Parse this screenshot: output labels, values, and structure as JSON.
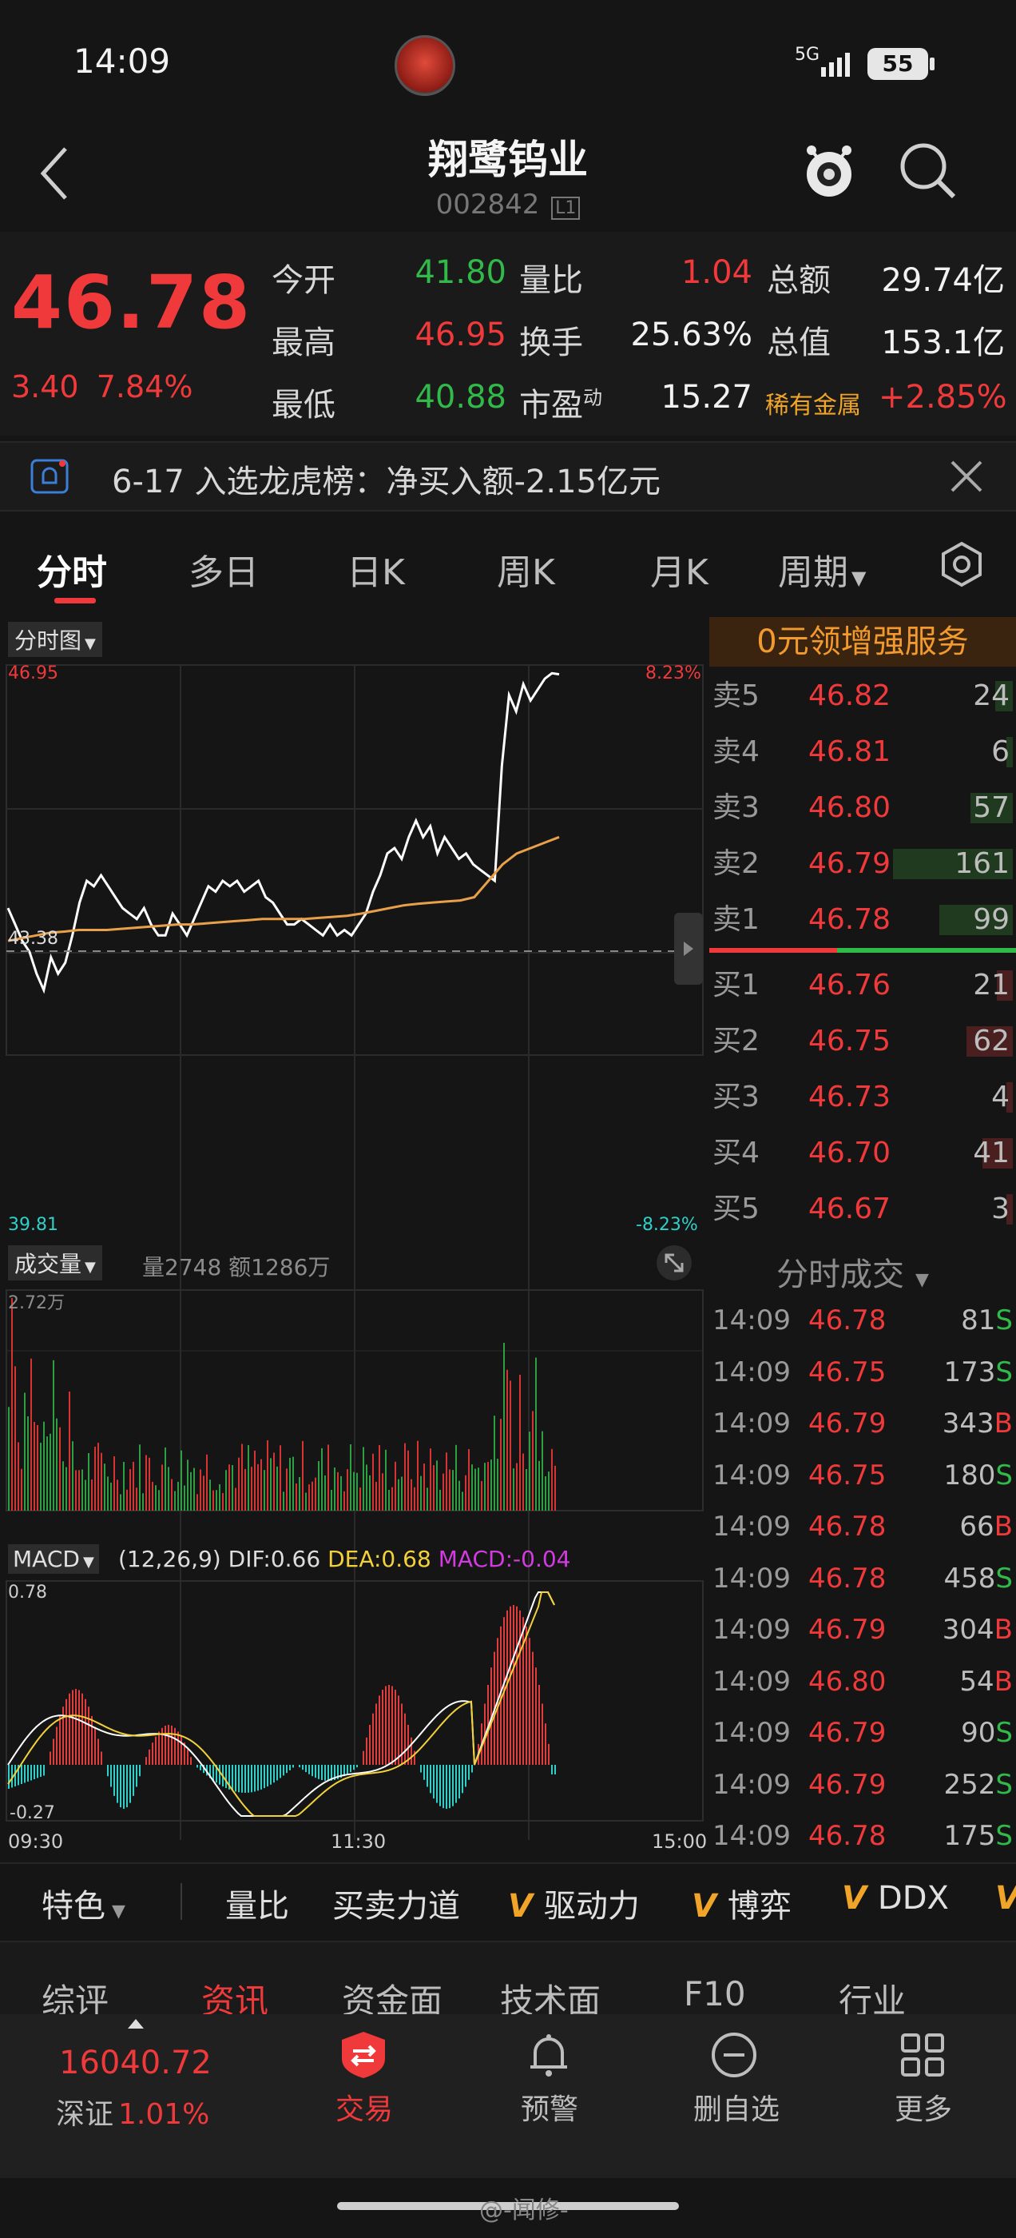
{
  "status": {
    "time": "14:09",
    "network": "5G",
    "battery": "55"
  },
  "header": {
    "title": "翔鹭钨业",
    "code": "002842",
    "code_badge": "L1"
  },
  "quote": {
    "price": "46.78",
    "change": "3.40",
    "change_pct": "7.84%",
    "rows": [
      {
        "l1": "今开",
        "v1": "41.80",
        "l2": "量比",
        "v2": "1.04",
        "l3": "总额",
        "v3": "29.74亿"
      },
      {
        "l1": "最高",
        "v1": "46.95",
        "l2": "换手",
        "v2": "25.63%",
        "l3": "总值",
        "v3": "153.1亿"
      },
      {
        "l1": "最低",
        "v1": "40.88",
        "l2": "市盈",
        "l2_sup": "动",
        "v2": "15.27",
        "l3": "稀有金属",
        "v3": "+2.85%"
      }
    ]
  },
  "notice": {
    "text": "6-17 入选龙虎榜：净买入额-2.15亿元"
  },
  "period_tabs": [
    "分时",
    "多日",
    "日K",
    "周K",
    "月K",
    "周期"
  ],
  "chart": {
    "selector": "分时图",
    "price_high": "46.95",
    "price_low": "39.81",
    "prev_close": "43.38",
    "pct_high": "8.23%",
    "pct_low": "-8.23%",
    "volume_label": "成交量",
    "volume_text": "量2748 额1286万",
    "volume_max": "2.72万",
    "macd_label": "MACD",
    "macd_params": "(12,26,9)",
    "dif": "DIF:0.66",
    "dea": "DEA:0.68",
    "macd": "MACD:-0.04",
    "macd_max": "0.78",
    "macd_min": "-0.27",
    "time_start": "09:30",
    "time_mid": "11:30",
    "time_end": "15:00"
  },
  "chart_data": {
    "type": "line",
    "x_label": "",
    "y_label": "",
    "price_range": [
      39.81,
      46.95
    ],
    "prev_close": 43.38,
    "series": [
      {
        "name": "",
        "color": "#ffffff",
        "values": [
          42.5,
          42.2,
          41.9,
          41.7,
          41.3,
          41.0,
          41.6,
          41.3,
          41.5,
          42.0,
          42.6,
          43.0,
          42.9,
          43.1,
          42.9,
          42.7,
          42.5,
          42.4,
          42.3,
          42.5,
          42.2,
          42.0,
          42.0,
          42.4,
          42.2,
          42.0,
          42.3,
          42.6,
          42.9,
          42.8,
          43.0,
          42.9,
          43.0,
          42.8,
          42.9,
          43.0,
          42.7,
          42.6,
          42.4,
          42.2,
          42.2,
          42.3,
          42.2,
          42.1,
          42.0,
          42.2,
          42.0,
          42.1,
          42.0,
          42.2,
          42.4,
          42.8,
          43.1,
          43.5,
          43.6,
          43.4,
          43.8,
          44.1,
          43.8,
          44.0,
          43.5,
          43.8,
          43.6,
          43.4,
          43.5,
          43.3,
          43.2,
          43.1,
          43.0,
          45.1,
          46.4,
          46.1,
          46.6,
          46.3,
          46.5,
          46.7,
          46.8,
          46.78
        ]
      },
      {
        "name": "",
        "color": "#e8a04a",
        "values": [
          41.9,
          41.95,
          42.0,
          42.05,
          42.07,
          42.1,
          42.1,
          42.1,
          42.12,
          42.14,
          42.16,
          42.18,
          42.2,
          42.2,
          42.22,
          42.24,
          42.26,
          42.28,
          42.3,
          42.3,
          42.3,
          42.3,
          42.32,
          42.34,
          42.36,
          42.4,
          42.45,
          42.5,
          42.55,
          42.58,
          42.6,
          42.62,
          42.64,
          42.7,
          43.0,
          43.3,
          43.5,
          43.6,
          43.7,
          43.8
        ]
      }
    ]
  },
  "order_book": {
    "promo": "0元领增强服务",
    "asks": [
      {
        "label": "卖5",
        "price": "46.82",
        "vol": "24"
      },
      {
        "label": "卖4",
        "price": "46.81",
        "vol": "6"
      },
      {
        "label": "卖3",
        "price": "46.80",
        "vol": "57"
      },
      {
        "label": "卖2",
        "price": "46.79",
        "vol": "161"
      },
      {
        "label": "卖1",
        "price": "46.78",
        "vol": "99"
      }
    ],
    "bids": [
      {
        "label": "买1",
        "price": "46.76",
        "vol": "21"
      },
      {
        "label": "买2",
        "price": "46.75",
        "vol": "62"
      },
      {
        "label": "买3",
        "price": "46.73",
        "vol": "4"
      },
      {
        "label": "买4",
        "price": "46.70",
        "vol": "41"
      },
      {
        "label": "买5",
        "price": "46.67",
        "vol": "3"
      }
    ]
  },
  "trades": {
    "header": "分时成交",
    "rows": [
      {
        "time": "14:09",
        "price": "46.78",
        "vol": "81",
        "side": "S"
      },
      {
        "time": "14:09",
        "price": "46.75",
        "vol": "173",
        "side": "S"
      },
      {
        "time": "14:09",
        "price": "46.79",
        "vol": "343",
        "side": "B"
      },
      {
        "time": "14:09",
        "price": "46.75",
        "vol": "180",
        "side": "S"
      },
      {
        "time": "14:09",
        "price": "46.78",
        "vol": "66",
        "side": "B"
      },
      {
        "time": "14:09",
        "price": "46.78",
        "vol": "458",
        "side": "S"
      },
      {
        "time": "14:09",
        "price": "46.79",
        "vol": "304",
        "side": "B"
      },
      {
        "time": "14:09",
        "price": "46.80",
        "vol": "54",
        "side": "B"
      },
      {
        "time": "14:09",
        "price": "46.79",
        "vol": "90",
        "side": "S"
      },
      {
        "time": "14:09",
        "price": "46.79",
        "vol": "252",
        "side": "S"
      },
      {
        "time": "14:09",
        "price": "46.78",
        "vol": "175",
        "side": "S"
      }
    ]
  },
  "features": [
    "特色",
    "量比",
    "买卖力道",
    "驱动力",
    "博弈",
    "DDX"
  ],
  "info_tabs": [
    "综评",
    "资讯",
    "资金面",
    "技术面",
    "F10",
    "行业"
  ],
  "bottom_nav": {
    "index_value": "16040.72",
    "index_name": "深证",
    "index_pct": "1.01%",
    "items": [
      "交易",
      "预警",
      "删自选",
      "更多"
    ]
  },
  "watermark": "@-闻修-"
}
